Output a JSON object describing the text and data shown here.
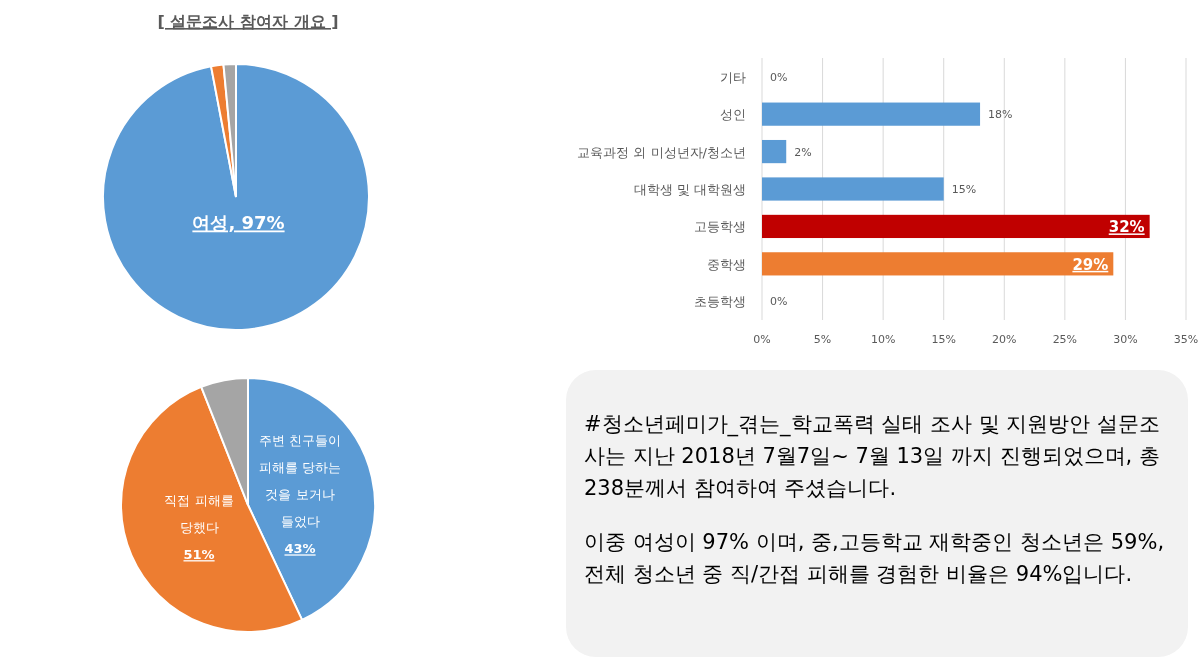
{
  "chart_data": [
    {
      "type": "pie",
      "title": "[ 설문조사 참여자 개요 ]",
      "categories": [
        "여성",
        null,
        null
      ],
      "values": [
        97,
        1.5,
        1.5
      ],
      "colors": [
        "#5b9bd5",
        "#ed7d31",
        "#a5a5a5"
      ],
      "value_labels": [
        "97%",
        null,
        null
      ]
    },
    {
      "type": "bar",
      "orientation": "horizontal",
      "categories": [
        "기타",
        "성인",
        "교육과정 외 미성년자/청소년",
        "대학생 및 대학원생",
        "고등학생",
        "중학생",
        "초등학생"
      ],
      "values": [
        0,
        18,
        2,
        15,
        32,
        29,
        0
      ],
      "colors": [
        "#5b9bd5",
        "#5b9bd5",
        "#5b9bd5",
        "#5b9bd5",
        "#c00000",
        "#ed7d31",
        "#5b9bd5"
      ],
      "value_labels": [
        "0%",
        "18%",
        "2%",
        "15%",
        "32%",
        "29%",
        "0%"
      ],
      "xlim": [
        0,
        35
      ],
      "xticks": [
        {
          "value": 0,
          "label": "0%"
        },
        {
          "value": 5,
          "label": "5%"
        },
        {
          "value": 10,
          "label": "10%"
        },
        {
          "value": 15,
          "label": "15%"
        },
        {
          "value": 20,
          "label": "20%"
        },
        {
          "value": 25,
          "label": "25%"
        },
        {
          "value": 30,
          "label": "30%"
        },
        {
          "value": 35,
          "label": "35%"
        }
      ],
      "grid": "x"
    },
    {
      "type": "pie",
      "categories": [
        "주변 친구들이\n피해를 당하는\n것을 보거나\n들었다",
        "직접 피해를\n당했다",
        null
      ],
      "values": [
        43,
        51,
        6
      ],
      "colors": [
        "#5b9bd5",
        "#ed7d31",
        "#a5a5a5"
      ],
      "value_labels": [
        "43%",
        "51%",
        null
      ]
    },
    {
      "type": "other",
      "annotations": [
        "#청소년페미가_겪는_학교폭력 실태 조사 및 지원방안 설문조사는 지난 2018년 7월7일~ 7월 13일 까지 진행되었으며, 총 238분께서 참여하여 주셨습니다.",
        "이중 여성이 97% 이며, 중,고등학교 재학중인 청소년은 59%, 전체 청소년 중 직/간접 피해를 경험한 비율은 94%입니다."
      ]
    }
  ]
}
